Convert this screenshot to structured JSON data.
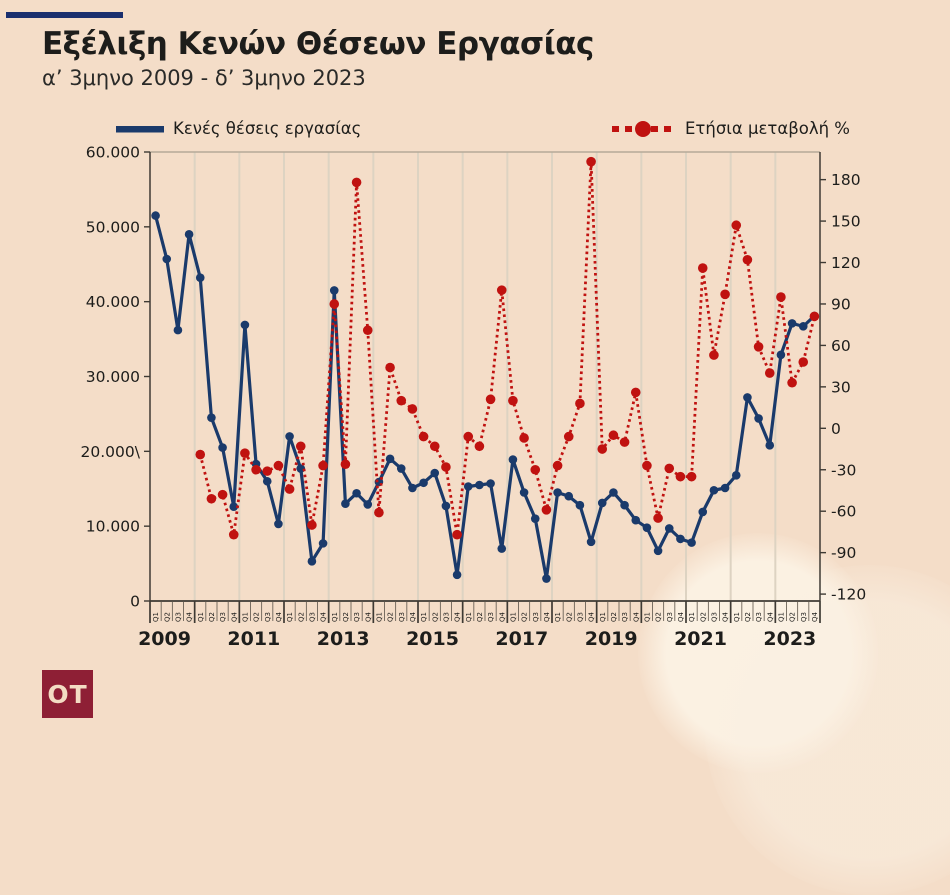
{
  "header": {
    "title": "Εξέλιξη Κενών Θέσεων Εργασίας",
    "subtitle": "α’ 3μηνο 2009 - δ’ 3μηνο 2023"
  },
  "legend": {
    "vacancies": "Κενές θέσεις εργασίας",
    "change": "Ετήσια μεταβολή %"
  },
  "logo": {
    "text": "OT"
  },
  "colors": {
    "background": "#f4ddc8",
    "navy": "#1a3a6b",
    "red": "#c01210",
    "maroon": "#8e1f35",
    "grid": "#ddd3c2",
    "axis": "#3e3a34",
    "tick": "#5a5248",
    "text": "#1d1d1b",
    "top_border": "#b5aa98"
  },
  "chart_data": {
    "type": "line",
    "title": "Εξέλιξη Κενών Θέσεων Εργασίας",
    "range_label": "α’ 3μηνο 2009 - δ’ 3μηνο 2023",
    "years": [
      "2009",
      "2010",
      "2011",
      "2012",
      "2013",
      "2014",
      "2015",
      "2016",
      "2017",
      "2018",
      "2019",
      "2020",
      "2021",
      "2022",
      "2023"
    ],
    "quarters": [
      "Q1",
      "Q2",
      "Q3",
      "Q4"
    ],
    "year_axis_labels": [
      "2009",
      "2011",
      "2013",
      "2015",
      "2017",
      "2019",
      "2021",
      "2023"
    ],
    "grid": "vertical-year-separators",
    "legend_position": "top",
    "left_axis": {
      "min": 0,
      "max": 60000,
      "tick_values": [
        60000,
        50000,
        40000,
        30000,
        20000,
        10000,
        0
      ],
      "tick_labels": [
        "60.000",
        "50.000",
        "40.000",
        "30.000",
        "20.000\\",
        "10.000",
        "0"
      ]
    },
    "right_axis": {
      "min": -125,
      "max": 200,
      "tick_values": [
        180,
        150,
        120,
        90,
        60,
        30,
        0,
        -30,
        -60,
        -90,
        -120
      ],
      "tick_labels": [
        "180",
        "150",
        "120",
        "90",
        "60",
        "30",
        "0",
        "-30",
        "-60",
        "-90",
        "-120"
      ]
    },
    "series": [
      {
        "name": "Κενές θέσεις εργασίας",
        "axis": "left",
        "style": "solid",
        "color": "#1a3a6b",
        "values": [
          51500,
          45700,
          36200,
          49000,
          43200,
          24500,
          20500,
          12600,
          36900,
          18300,
          16000,
          10300,
          22000,
          17700,
          5300,
          7700,
          41500,
          13000,
          14400,
          12900,
          15900,
          19000,
          17700,
          15100,
          15800,
          17100,
          12700,
          3500,
          15300,
          15500,
          15700,
          7000,
          18900,
          14500,
          11000,
          3000,
          14500,
          14000,
          12800,
          7900,
          13100,
          14500,
          12800,
          10800,
          9800,
          6700,
          9700,
          8300,
          7800,
          11900,
          14800,
          15100,
          16800,
          27200,
          24400,
          20800,
          32900,
          37100,
          36700,
          38100
        ]
      },
      {
        "name": "Ετήσια μεταβολή %",
        "axis": "right",
        "style": "dotted",
        "color": "#c01210",
        "values": [
          null,
          null,
          null,
          null,
          -19,
          -51,
          -48,
          -77,
          -18,
          -30,
          -31,
          -27,
          -44,
          -13,
          -70,
          -27,
          90,
          -26,
          178,
          71,
          -61,
          44,
          20,
          14,
          -6,
          -13,
          -28,
          -77,
          -6,
          -13,
          21,
          100,
          20,
          -7,
          -30,
          -59,
          -27,
          -6,
          18,
          193,
          -15,
          -5,
          -10,
          26,
          -27,
          -65,
          -29,
          -35,
          -35,
          116,
          53,
          97,
          147,
          122,
          59,
          40,
          95,
          33,
          48,
          81
        ]
      }
    ]
  }
}
